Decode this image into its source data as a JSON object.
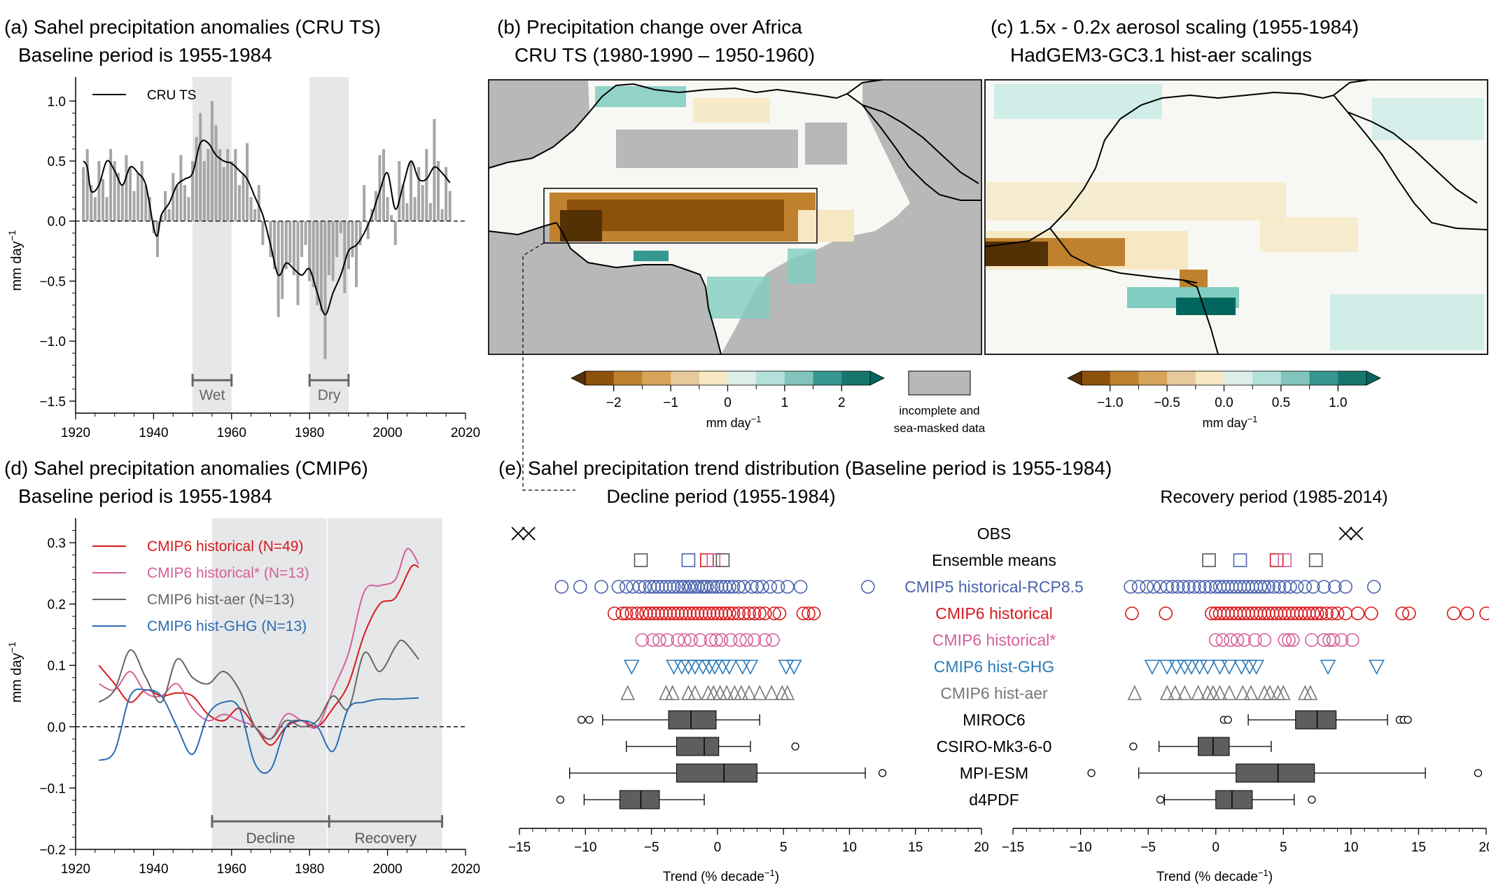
{
  "panels": {
    "a": {
      "title1": "(a) Sahel precipitation anomalies (CRU TS)",
      "title2": "Baseline period is 1955-1984",
      "ylabel": "mm day",
      "ylabel_sup": "−1",
      "legend": "CRU TS",
      "wet_label": "Wet",
      "dry_label": "Dry"
    },
    "b": {
      "title1": "(b) Precipitation change over Africa",
      "title2": "CRU TS (1980-1990 – 1950-1960)",
      "cbar_label": "mm day",
      "cbar_label_sup": "−1",
      "masked_label1": "incomplete and",
      "masked_label2": "sea-masked data"
    },
    "c": {
      "title1": "(c) 1.5x - 0.2x aerosol scaling (1955-1984)",
      "title2": "HadGEM3-GC3.1 hist-aer scalings",
      "cbar_label": "mm day",
      "cbar_label_sup": "−1"
    },
    "d": {
      "title1": "(d) Sahel precipitation anomalies (CMIP6)",
      "title2": "Baseline period is 1955-1984",
      "ylabel": "mm day",
      "ylabel_sup": "−1",
      "decline_label": "Decline",
      "recovery_label": "Recovery"
    },
    "e": {
      "title": "(e) Sahel precipitation trend distribution (Baseline period is 1955-1984)",
      "left_title": "Decline period (1955-1984)",
      "right_title": "Recovery period (1985-2014)",
      "xlabel": "Trend (% decade",
      "xlabel_sup": "−1",
      "xlabel_end": ")"
    }
  },
  "colors": {
    "bar": "#a6a6a6",
    "shade": "#e6e7e9",
    "historical": "#d7191c",
    "historical_star": "#d4609a",
    "hist_aer": "#666666",
    "hist_ghg": "#2b6cb0",
    "cmip5": "#4a63ad",
    "ghg_tri": "#2b7bb9",
    "box": "#5e5e5e",
    "land_gray": "#b8b8b8"
  },
  "chart_data": [
    {
      "panel": "a",
      "type": "bar",
      "xlim": [
        1920,
        2020
      ],
      "ylim": [
        -1.6,
        1.2
      ],
      "xticks": [
        "1920",
        "1940",
        "1960",
        "1980",
        "2000",
        "2020"
      ],
      "yticks": [
        "−1.5",
        "−1.0",
        "−0.5",
        "0.0",
        "0.5",
        "1.0"
      ],
      "shaded_periods": [
        [
          1950,
          1960
        ],
        [
          1980,
          1990
        ]
      ],
      "x": [
        1922,
        1923,
        1924,
        1925,
        1926,
        1927,
        1928,
        1929,
        1930,
        1931,
        1932,
        1933,
        1934,
        1935,
        1936,
        1937,
        1938,
        1939,
        1940,
        1941,
        1942,
        1943,
        1944,
        1945,
        1946,
        1947,
        1948,
        1949,
        1950,
        1951,
        1952,
        1953,
        1954,
        1955,
        1956,
        1957,
        1958,
        1959,
        1960,
        1961,
        1962,
        1963,
        1964,
        1965,
        1966,
        1967,
        1968,
        1969,
        1970,
        1971,
        1972,
        1973,
        1974,
        1975,
        1976,
        1977,
        1978,
        1979,
        1980,
        1981,
        1982,
        1983,
        1984,
        1985,
        1986,
        1987,
        1988,
        1989,
        1990,
        1991,
        1992,
        1993,
        1994,
        1995,
        1996,
        1997,
        1998,
        1999,
        2000,
        2001,
        2002,
        2003,
        2004,
        2005,
        2006,
        2007,
        2008,
        2009,
        2010,
        2011,
        2012,
        2013,
        2014,
        2015,
        2016
      ],
      "values": [
        0.45,
        0.6,
        0.3,
        0.2,
        0.5,
        0.35,
        0.2,
        0.6,
        0.5,
        0.4,
        0.3,
        0.55,
        0.45,
        0.25,
        0.4,
        0.5,
        0.3,
        0.2,
        -0.1,
        -0.3,
        0.05,
        0.25,
        0.1,
        0.4,
        0.3,
        0.55,
        0.3,
        0.2,
        0.5,
        0.7,
        0.9,
        0.5,
        0.6,
        1.0,
        0.8,
        0.6,
        0.45,
        0.6,
        0.5,
        0.6,
        0.3,
        0.4,
        0.65,
        0.2,
        0.1,
        0.3,
        -0.2,
        0.0,
        -0.3,
        -0.4,
        -0.8,
        -0.65,
        -0.4,
        -0.35,
        -0.45,
        -0.7,
        -0.3,
        -0.2,
        -0.5,
        -0.55,
        -0.7,
        -0.75,
        -1.15,
        -0.45,
        -0.5,
        -0.3,
        -0.1,
        -0.6,
        -0.4,
        -0.3,
        -0.55,
        -0.2,
        0.3,
        -0.15,
        0.1,
        0.25,
        0.55,
        0.6,
        0.2,
        0.05,
        -0.2,
        0.5,
        0.3,
        0.15,
        0.5,
        0.2,
        0.45,
        0.3,
        0.6,
        0.15,
        0.85,
        0.5,
        0.1,
        0.45,
        0.25
      ],
      "smooth": {
        "name": "CRU TS",
        "x": [
          1922,
          1923,
          1924,
          1926,
          1928,
          1930,
          1932,
          1934,
          1936,
          1938,
          1940,
          1941,
          1942,
          1944,
          1946,
          1948,
          1950,
          1952,
          1954,
          1956,
          1958,
          1960,
          1962,
          1964,
          1966,
          1968,
          1970,
          1972,
          1974,
          1976,
          1978,
          1980,
          1982,
          1984,
          1986,
          1988,
          1990,
          1992,
          1994,
          1996,
          1998,
          2000,
          2002,
          2004,
          2006,
          2008,
          2010,
          2012,
          2014,
          2016
        ],
        "y": [
          0.5,
          0.45,
          0.25,
          0.3,
          0.5,
          0.42,
          0.3,
          0.45,
          0.4,
          0.3,
          -0.05,
          -0.12,
          0.05,
          0.15,
          0.3,
          0.35,
          0.4,
          0.65,
          0.65,
          0.55,
          0.5,
          0.48,
          0.42,
          0.35,
          0.2,
          0.05,
          -0.2,
          -0.45,
          -0.35,
          -0.4,
          -0.45,
          -0.4,
          -0.6,
          -0.78,
          -0.6,
          -0.45,
          -0.25,
          -0.2,
          -0.1,
          0.05,
          0.25,
          0.4,
          0.1,
          0.3,
          0.5,
          0.35,
          0.35,
          0.45,
          0.4,
          0.32
        ]
      }
    },
    {
      "panel": "d",
      "type": "line",
      "xlim": [
        1920,
        2020
      ],
      "ylim": [
        -0.2,
        0.34
      ],
      "xticks": [
        "1920",
        "1940",
        "1960",
        "1980",
        "2000",
        "2020"
      ],
      "yticks": [
        "−0.2",
        "−0.1",
        "0.0",
        "0.1",
        "0.2",
        "0.3"
      ],
      "shaded_period": [
        1955,
        2014
      ],
      "series": [
        {
          "name": "CMIP6 historical (N=49)",
          "key": "historical",
          "x": [
            1926,
            1930,
            1934,
            1938,
            1942,
            1946,
            1950,
            1954,
            1958,
            1962,
            1966,
            1970,
            1974,
            1978,
            1982,
            1986,
            1990,
            1994,
            1998,
            2002,
            2006,
            2008
          ],
          "y": [
            0.1,
            0.07,
            0.04,
            0.06,
            0.05,
            0.055,
            0.05,
            0.02,
            0.01,
            0.03,
            0.0,
            -0.03,
            0.0,
            0.01,
            0.0,
            0.03,
            0.07,
            0.15,
            0.2,
            0.21,
            0.26,
            0.26
          ]
        },
        {
          "name": "CMIP6 historical* (N=13)",
          "key": "historical_star",
          "x": [
            1926,
            1930,
            1934,
            1938,
            1942,
            1946,
            1950,
            1954,
            1958,
            1962,
            1966,
            1970,
            1974,
            1978,
            1982,
            1986,
            1990,
            1994,
            1998,
            2002,
            2005,
            2008
          ],
          "y": [
            0.07,
            0.06,
            0.09,
            0.055,
            0.05,
            0.07,
            0.03,
            0.01,
            0.02,
            0.01,
            0.0,
            -0.02,
            0.02,
            0.01,
            0.0,
            0.06,
            0.12,
            0.22,
            0.23,
            0.24,
            0.29,
            0.265
          ]
        },
        {
          "name": "CMIP6 hist-aer (N=13)",
          "key": "hist_aer",
          "x": [
            1926,
            1930,
            1934,
            1938,
            1942,
            1946,
            1950,
            1954,
            1958,
            1962,
            1966,
            1970,
            1974,
            1978,
            1982,
            1986,
            1990,
            1994,
            1998,
            2002,
            2004,
            2008
          ],
          "y": [
            0.04,
            0.06,
            0.125,
            0.08,
            0.04,
            0.11,
            0.08,
            0.07,
            0.09,
            0.06,
            0.0,
            -0.02,
            0.01,
            0.0,
            0.01,
            0.05,
            0.03,
            0.12,
            0.09,
            0.13,
            0.14,
            0.11
          ]
        },
        {
          "name": "CMIP6 hist-GHG (N=13)",
          "key": "hist_ghg",
          "x": [
            1926,
            1930,
            1934,
            1938,
            1942,
            1946,
            1950,
            1954,
            1958,
            1962,
            1966,
            1970,
            1974,
            1978,
            1982,
            1986,
            1990,
            1994,
            1998,
            2002,
            2008
          ],
          "y": [
            -0.055,
            -0.04,
            0.05,
            0.06,
            0.05,
            0.0,
            -0.045,
            0.02,
            0.04,
            0.03,
            -0.06,
            -0.07,
            0.0,
            0.01,
            0.0,
            -0.04,
            0.03,
            0.04,
            0.045,
            0.045,
            0.047
          ]
        }
      ]
    },
    {
      "panel": "b",
      "type": "heatmap",
      "colorbar_ticks": [
        "−2",
        "−1",
        "0",
        "1",
        "2"
      ],
      "colorbar_range": [
        -2.5,
        2.5
      ]
    },
    {
      "panel": "c",
      "type": "heatmap",
      "colorbar_ticks": [
        "−1.0",
        "−0.5",
        "0.0",
        "0.5",
        "1.0"
      ],
      "colorbar_range": [
        -1.25,
        1.25
      ]
    },
    {
      "panel": "e",
      "type": "scatter",
      "xlim": [
        -15,
        20
      ],
      "xticks": [
        "−15",
        "−10",
        "−5",
        "0",
        "5",
        "10",
        "15",
        "20"
      ],
      "rows": [
        "OBS",
        "Ensemble means",
        "CMIP5 historical-RCP8.5",
        "CMIP6 historical",
        "CMIP6 historical*",
        "CMIP6 hist-GHG",
        "CMIP6 hist-aer",
        "MIROC6",
        "CSIRO-Mk3-6-0",
        "MPI-ESM",
        "d4PDF"
      ],
      "decline": {
        "obs": [
          -15.1,
          -14.3
        ],
        "ensemble_means": [
          -5.8,
          -2.2,
          -0.8,
          -0.3,
          0.4
        ],
        "cmip5": [
          -11.8,
          -10.4,
          -8.8,
          -7.5,
          -6.9,
          -6.4,
          -5.9,
          -5.5,
          -5.1,
          -4.8,
          -4.5,
          -4.2,
          -3.9,
          -3.6,
          -3.3,
          -3.0,
          -2.7,
          -2.5,
          -2.2,
          -2.0,
          -1.7,
          -1.5,
          -1.2,
          -1.0,
          -0.8,
          -0.5,
          -0.3,
          0.0,
          0.3,
          0.6,
          0.9,
          1.2,
          1.6,
          2.0,
          2.6,
          3.0,
          3.4,
          4.0,
          4.6,
          5.3,
          6.3,
          11.4
        ],
        "cmip6": [
          -7.8,
          -7.2,
          -6.9,
          -6.5,
          -6.1,
          -5.7,
          -5.4,
          -5.1,
          -4.8,
          -4.5,
          -4.2,
          -3.9,
          -3.6,
          -3.3,
          -3.0,
          -2.7,
          -2.4,
          -2.1,
          -1.8,
          -1.5,
          -1.2,
          -0.9,
          -0.6,
          -0.3,
          0.0,
          0.3,
          0.6,
          0.9,
          1.2,
          1.6,
          2.0,
          2.4,
          2.8,
          3.2,
          3.6,
          4.3,
          4.7,
          6.5,
          6.9,
          7.3
        ],
        "cmip6_star": [
          -5.7,
          -4.9,
          -4.4,
          -3.8,
          -3.0,
          -2.5,
          -2.0,
          -1.3,
          -0.5,
          -0.1,
          0.3,
          1.0,
          1.7,
          2.2,
          2.8,
          3.6,
          4.2
        ],
        "ghg": [
          -6.5,
          -3.3,
          -2.7,
          -2.2,
          -1.7,
          -1.1,
          -0.6,
          -0.2,
          0.4,
          0.9,
          1.9,
          2.5,
          5.2,
          5.8
        ],
        "aer": [
          -6.8,
          -3.9,
          -3.4,
          -2.2,
          -1.7,
          -0.7,
          -0.3,
          0.2,
          0.7,
          1.3,
          1.8,
          2.4,
          3.2,
          4.1,
          4.9,
          5.3
        ],
        "boxes": [
          {
            "name": "MIROC6",
            "whisker": [
              -8.7,
              3.2
            ],
            "q": [
              -3.7,
              -2.0,
              -0.1
            ],
            "outliers": [
              -10.3,
              -9.7
            ]
          },
          {
            "name": "CSIRO-Mk3-6-0",
            "whisker": [
              -6.9,
              2.5
            ],
            "q": [
              -3.1,
              -1.0,
              0.1
            ],
            "outliers": [
              5.9
            ]
          },
          {
            "name": "MPI-ESM",
            "whisker": [
              -11.2,
              11.2
            ],
            "q": [
              -3.1,
              0.5,
              3.0
            ],
            "outliers": [
              12.5
            ]
          },
          {
            "name": "d4PDF",
            "whisker": [
              -10.1,
              -1.0
            ],
            "q": [
              -7.4,
              -5.8,
              -4.4
            ],
            "outliers": [
              -11.9
            ]
          }
        ]
      },
      "recovery": {
        "obs": [
          9.6,
          10.4
        ],
        "ensemble_means": [
          -0.5,
          1.8,
          4.5,
          5.1,
          7.4
        ],
        "cmip5": [
          -6.3,
          -5.7,
          -5.1,
          -4.6,
          -4.1,
          -3.6,
          -3.2,
          -2.8,
          -2.4,
          -2.0,
          -1.6,
          -1.2,
          -0.8,
          -0.4,
          0.0,
          0.3,
          0.6,
          0.9,
          1.2,
          1.5,
          1.8,
          2.1,
          2.4,
          2.7,
          3.0,
          3.3,
          3.6,
          3.9,
          4.3,
          4.7,
          5.1,
          5.5,
          6.0,
          6.6,
          7.2,
          8.0,
          8.8,
          9.6,
          11.7
        ],
        "cmip6": [
          -6.2,
          -3.7,
          -0.3,
          0.0,
          0.3,
          0.6,
          0.9,
          1.2,
          1.5,
          1.8,
          2.1,
          2.4,
          2.7,
          3.0,
          3.3,
          3.6,
          3.9,
          4.2,
          4.5,
          4.8,
          5.1,
          5.4,
          5.7,
          6.0,
          6.3,
          6.6,
          6.9,
          7.2,
          7.5,
          7.8,
          8.2,
          8.6,
          9.0,
          9.6,
          10.5,
          11.5,
          13.8,
          14.3,
          17.6,
          18.6,
          20.0
        ],
        "cmip6_star": [
          0.0,
          0.5,
          1.1,
          1.6,
          2.1,
          2.9,
          3.6,
          5.1,
          5.4,
          5.7,
          7.1,
          8.0,
          8.4,
          8.7,
          9.3,
          10.1
        ],
        "ghg": [
          -4.7,
          -3.6,
          -2.9,
          -2.3,
          -1.8,
          -1.2,
          -0.6,
          0.3,
          1.0,
          1.9,
          2.5,
          3.0,
          8.3,
          11.9
        ],
        "aer": [
          -6.0,
          -3.6,
          -3.0,
          -2.3,
          -1.3,
          -0.6,
          -0.2,
          0.3,
          1.0,
          2.0,
          2.6,
          3.6,
          4.0,
          4.6,
          5.0,
          6.6,
          7.0
        ],
        "boxes": [
          {
            "name": "MIROC6",
            "whisker": [
              2.4,
              12.7
            ],
            "q": [
              5.9,
              7.5,
              8.9
            ],
            "outliers": [
              0.6,
              0.9,
              13.6,
              13.9,
              14.2
            ]
          },
          {
            "name": "CSIRO-Mk3-6-0",
            "whisker": [
              -4.2,
              4.1
            ],
            "q": [
              -1.3,
              -0.2,
              1.0
            ],
            "outliers": [
              -6.1
            ]
          },
          {
            "name": "MPI-ESM",
            "whisker": [
              -5.7,
              15.5
            ],
            "q": [
              1.5,
              4.6,
              7.3
            ],
            "outliers": [
              -9.2,
              19.4
            ]
          },
          {
            "name": "d4PDF",
            "whisker": [
              -3.8,
              5.8
            ],
            "q": [
              0.0,
              1.2,
              2.7
            ],
            "outliers": [
              -4.1,
              7.1
            ]
          }
        ]
      }
    }
  ]
}
